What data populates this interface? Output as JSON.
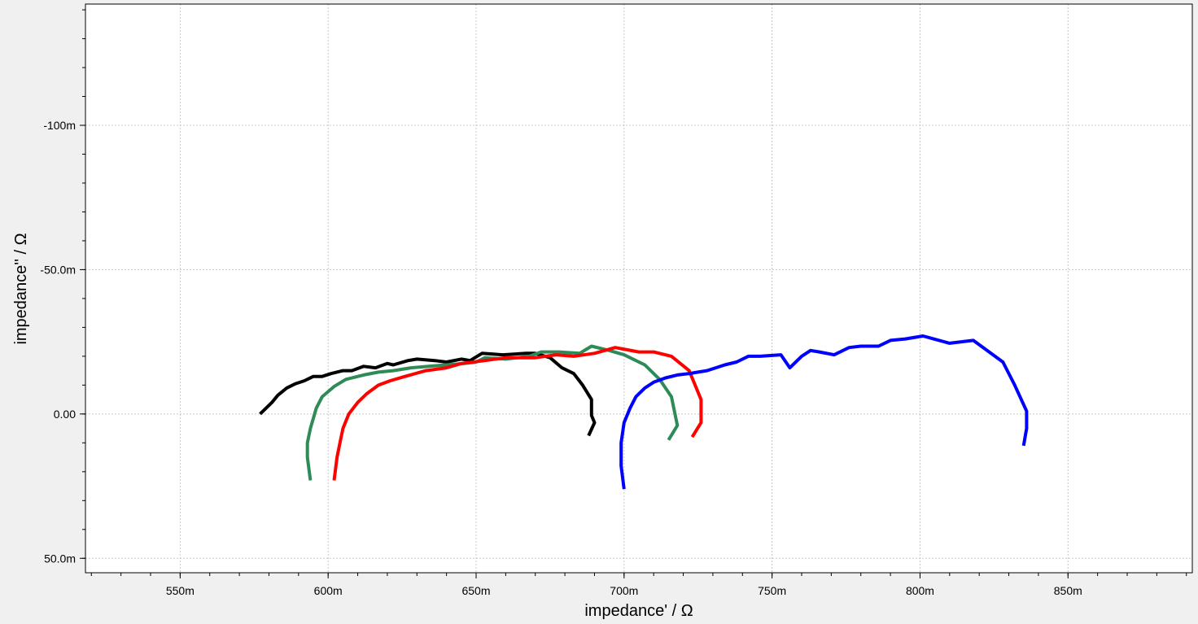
{
  "chart_data": {
    "type": "line",
    "title": "",
    "xlabel": "impedance' / Ω",
    "ylabel": "impedance'' / Ω",
    "xlim": [
      0.518,
      0.892
    ],
    "ylim": [
      -0.142,
      0.055
    ],
    "y_inverted": true,
    "grid": true,
    "x_ticks": [
      {
        "value": 0.55,
        "label": "550m"
      },
      {
        "value": 0.6,
        "label": "600m"
      },
      {
        "value": 0.65,
        "label": "650m"
      },
      {
        "value": 0.7,
        "label": "700m"
      },
      {
        "value": 0.75,
        "label": "750m"
      },
      {
        "value": 0.8,
        "label": "800m"
      },
      {
        "value": 0.85,
        "label": "850m"
      }
    ],
    "y_ticks": [
      {
        "value": -0.1,
        "label": "-100m"
      },
      {
        "value": -0.05,
        "label": "-50.0m"
      },
      {
        "value": 0.0,
        "label": "0.00"
      },
      {
        "value": 0.05,
        "label": "50.0m"
      }
    ],
    "series": [
      {
        "color": "#000000",
        "x": [
          0.688,
          0.69,
          0.689,
          0.689,
          0.686,
          0.683,
          0.679,
          0.675,
          0.67,
          0.667,
          0.659,
          0.652,
          0.648,
          0.645,
          0.64,
          0.636,
          0.63,
          0.627,
          0.622,
          0.62,
          0.616,
          0.612,
          0.608,
          0.605,
          0.601,
          0.598,
          0.595,
          0.592,
          0.589,
          0.586,
          0.583,
          0.581,
          0.579,
          0.578,
          0.577
        ],
        "y": [
          0.0075,
          0.003,
          0.0005,
          -0.005,
          -0.01,
          -0.014,
          -0.016,
          -0.0195,
          -0.021,
          -0.021,
          -0.0205,
          -0.021,
          -0.0185,
          -0.019,
          -0.018,
          -0.0185,
          -0.019,
          -0.0185,
          -0.017,
          -0.0175,
          -0.016,
          -0.0165,
          -0.015,
          -0.015,
          -0.014,
          -0.013,
          -0.013,
          -0.0115,
          -0.0105,
          -0.009,
          -0.0065,
          -0.004,
          -0.002,
          -0.001,
          0.0
        ]
      },
      {
        "color": "#2e8b57",
        "x": [
          0.715,
          0.718,
          0.716,
          0.712,
          0.707,
          0.7,
          0.695,
          0.689,
          0.685,
          0.678,
          0.672,
          0.668,
          0.66,
          0.653,
          0.65,
          0.646,
          0.64,
          0.634,
          0.628,
          0.622,
          0.617,
          0.612,
          0.606,
          0.602,
          0.598,
          0.596,
          0.594,
          0.593,
          0.593,
          0.594
        ],
        "y": [
          0.009,
          0.004,
          -0.006,
          -0.012,
          -0.017,
          -0.0205,
          -0.022,
          -0.0235,
          -0.021,
          -0.0215,
          -0.0215,
          -0.02,
          -0.019,
          -0.0195,
          -0.018,
          -0.0175,
          -0.017,
          -0.0165,
          -0.016,
          -0.015,
          -0.0145,
          -0.0135,
          -0.012,
          -0.0095,
          -0.006,
          -0.002,
          0.005,
          0.01,
          0.015,
          0.023
        ]
      },
      {
        "color": "#ff0000",
        "x": [
          0.723,
          0.726,
          0.726,
          0.722,
          0.716,
          0.71,
          0.705,
          0.697,
          0.69,
          0.683,
          0.677,
          0.67,
          0.66,
          0.653,
          0.645,
          0.64,
          0.633,
          0.626,
          0.621,
          0.617,
          0.613,
          0.61,
          0.607,
          0.605,
          0.604,
          0.603,
          0.602
        ],
        "y": [
          0.008,
          0.003,
          -0.005,
          -0.015,
          -0.02,
          -0.0215,
          -0.0215,
          -0.023,
          -0.021,
          -0.02,
          -0.0205,
          -0.0195,
          -0.0195,
          -0.0185,
          -0.0175,
          -0.016,
          -0.015,
          -0.013,
          -0.0115,
          -0.01,
          -0.007,
          -0.004,
          0.0,
          0.005,
          0.01,
          0.015,
          0.023
        ]
      },
      {
        "color": "#0000ff",
        "x": [
          0.835,
          0.836,
          0.836,
          0.832,
          0.828,
          0.818,
          0.81,
          0.801,
          0.795,
          0.79,
          0.786,
          0.78,
          0.776,
          0.771,
          0.766,
          0.763,
          0.76,
          0.756,
          0.753,
          0.746,
          0.742,
          0.738,
          0.734,
          0.731,
          0.728,
          0.725,
          0.722,
          0.718,
          0.714,
          0.71,
          0.707,
          0.704,
          0.702,
          0.7,
          0.699,
          0.699,
          0.7
        ],
        "y": [
          0.011,
          0.005,
          -0.001,
          -0.01,
          -0.018,
          -0.0255,
          -0.0245,
          -0.027,
          -0.026,
          -0.0255,
          -0.0235,
          -0.0235,
          -0.023,
          -0.0205,
          -0.0215,
          -0.022,
          -0.02,
          -0.016,
          -0.0205,
          -0.02,
          -0.02,
          -0.018,
          -0.017,
          -0.016,
          -0.015,
          -0.0145,
          -0.014,
          -0.0135,
          -0.0125,
          -0.011,
          -0.009,
          -0.006,
          -0.002,
          0.003,
          0.01,
          0.018,
          0.026
        ]
      }
    ]
  }
}
